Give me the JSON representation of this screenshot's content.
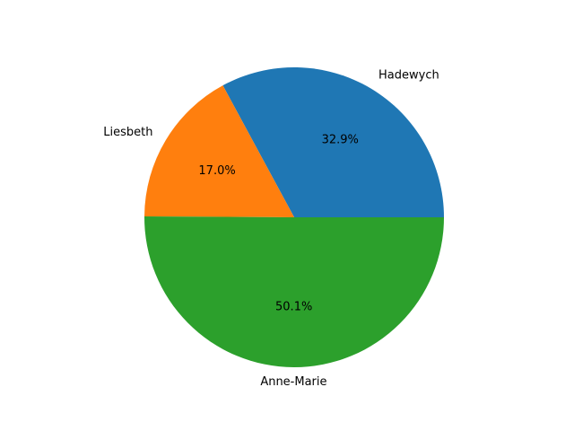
{
  "chart_data": {
    "type": "pie",
    "title": "",
    "start_angle_deg": 0,
    "direction": "counterclockwise",
    "slices": [
      {
        "label": "Hadewych",
        "value": 32.9,
        "pct_label": "32.9%",
        "color": "#1f77b4"
      },
      {
        "label": "Liesbeth",
        "value": 17.0,
        "pct_label": "17.0%",
        "color": "#ff7f0e"
      },
      {
        "label": "Anne-Marie",
        "value": 50.1,
        "pct_label": "50.1%",
        "color": "#2ca02c"
      }
    ]
  }
}
